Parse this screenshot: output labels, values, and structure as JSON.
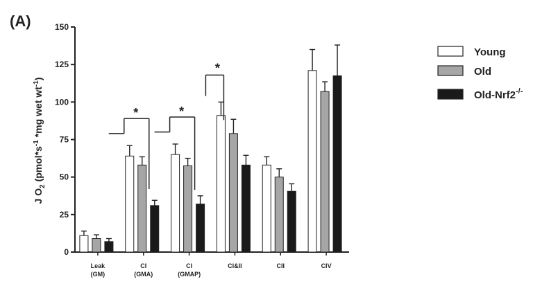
{
  "panel_label": "(A)",
  "colors": {
    "Young": "#ffffff",
    "Old": "#a6a6a6",
    "Old-Nrf2": "#1a1a1a",
    "axis": "#222222"
  },
  "chart_data": {
    "type": "bar",
    "ylabel": {
      "main": "J O",
      "sub2": "2",
      "unit_a": " (pmol*s",
      "sup1": "-1",
      "unit_b": " *mg wet wt",
      "sup2": "-1",
      "close": ")"
    },
    "ylim": [
      0,
      150
    ],
    "yticks": [
      "0",
      "25",
      "50",
      "75",
      "100",
      "125",
      "150"
    ],
    "categories": [
      {
        "line1": "Leak",
        "line2": "(GM)"
      },
      {
        "line1": "CI",
        "line2": "(GMA)"
      },
      {
        "line1": "CI",
        "line2": "(GMAP)"
      },
      {
        "line1": "CI&II",
        "line2": ""
      },
      {
        "line1": "CII",
        "line2": ""
      },
      {
        "line1": "CIV",
        "line2": ""
      }
    ],
    "series": [
      {
        "name": "Young",
        "legend_sup": "",
        "values": [
          11,
          64,
          65,
          91,
          58,
          121
        ],
        "errors": [
          3,
          7,
          7,
          9,
          5.5,
          14
        ]
      },
      {
        "name": "Old",
        "legend_sup": "",
        "values": [
          9,
          58,
          57.5,
          79,
          50,
          107
        ],
        "errors": [
          2.5,
          5.5,
          5,
          9.5,
          5.5,
          6.5
        ]
      },
      {
        "name": "Old-Nrf2",
        "legend_sup": "-/-",
        "values": [
          7,
          31,
          32,
          58,
          40.5,
          117.5
        ],
        "errors": [
          2,
          3.5,
          5.5,
          6.5,
          5,
          20.5
        ]
      }
    ],
    "significance": [
      {
        "category": 1,
        "label": "*"
      },
      {
        "category": 2,
        "label": "*"
      },
      {
        "category": 3,
        "label": "*"
      }
    ],
    "legend_position": "top-right",
    "grid": false
  }
}
